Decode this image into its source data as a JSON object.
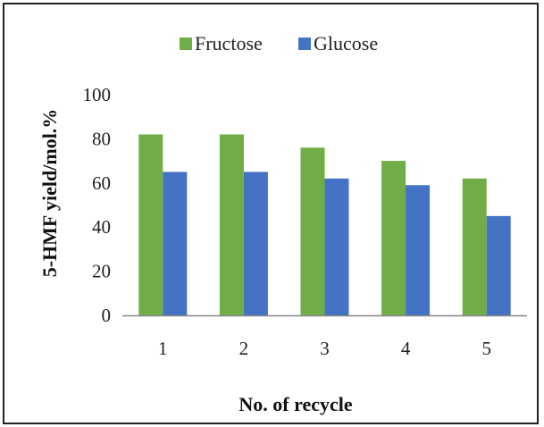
{
  "chart_data": {
    "type": "bar",
    "title": "",
    "xlabel": "No. of recycle",
    "ylabel": "5-HMF yield/mol.%",
    "categories": [
      "1",
      "2",
      "3",
      "4",
      "5"
    ],
    "ylim": [
      0,
      100
    ],
    "yticks": [
      0,
      20,
      40,
      60,
      80,
      100
    ],
    "grid": false,
    "legend_position": "top-center",
    "series": [
      {
        "name": "Fructose",
        "color": "#70ad47",
        "values": [
          82,
          82,
          76,
          70,
          62
        ]
      },
      {
        "name": "Glucose",
        "color": "#4472c4",
        "values": [
          65,
          65,
          62,
          59,
          45
        ]
      }
    ]
  }
}
